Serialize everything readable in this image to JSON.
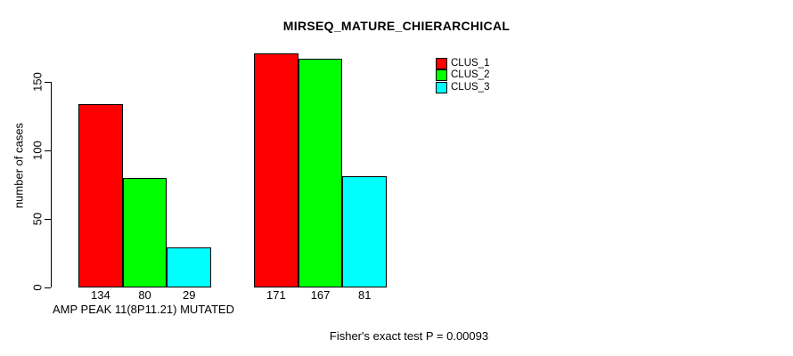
{
  "title": "MIRSEQ_MATURE_CHIERARCHICAL",
  "ylabel": "number of cases",
  "group_label": "AMP PEAK 11(8P11.21) MUTATED",
  "footer_annotation": "Fisher's exact test P = 0.00093",
  "legend": {
    "items": [
      {
        "label": "CLUS_1",
        "color": "#ff0000"
      },
      {
        "label": "CLUS_2",
        "color": "#00ff00"
      },
      {
        "label": "CLUS_3",
        "color": "#00ffff"
      }
    ]
  },
  "chart_data": {
    "type": "bar",
    "title": "MIRSEQ_MATURE_CHIERARCHICAL",
    "xlabel": "",
    "ylabel": "number of cases",
    "categories": [
      "AMP PEAK 11(8P11.21) MUTATED",
      ""
    ],
    "series": [
      {
        "name": "CLUS_1",
        "color": "#ff0000",
        "values": [
          134,
          171
        ]
      },
      {
        "name": "CLUS_2",
        "color": "#00ff00",
        "values": [
          80,
          167
        ]
      },
      {
        "name": "CLUS_3",
        "color": "#00ffff",
        "values": [
          29,
          81
        ]
      }
    ],
    "ylim": [
      0,
      150
    ],
    "yticks": [
      0,
      50,
      100,
      150
    ],
    "grid": false,
    "legend_position": "top-right",
    "bar_border_color": "#000000",
    "annotation": "Fisher's exact test P = 0.00093"
  }
}
